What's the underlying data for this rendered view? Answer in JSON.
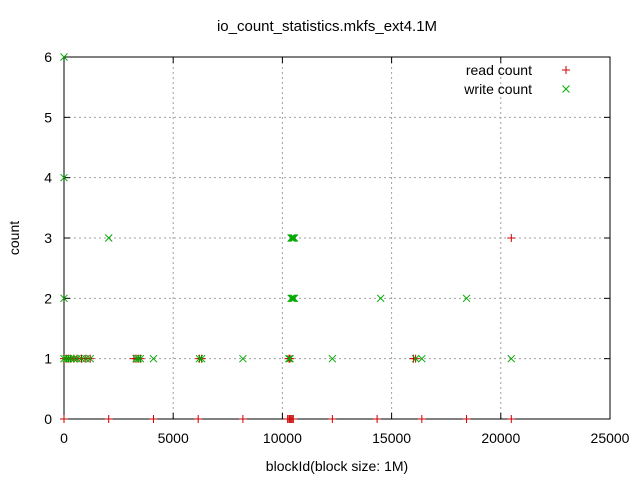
{
  "chart_data": {
    "type": "scatter",
    "title": "io_count_statistics.mkfs_ext4.1M",
    "xlabel": "blockId(block size: 1M)",
    "ylabel": "count",
    "xlim": [
      0,
      25000
    ],
    "ylim": [
      0,
      6
    ],
    "x_ticks": [
      "0",
      "5000",
      "10000",
      "15000",
      "20000",
      "25000"
    ],
    "y_ticks": [
      "0",
      "1",
      "2",
      "3",
      "4",
      "5",
      "6"
    ],
    "grid": true,
    "legend_position": "top-right",
    "colors": {
      "read": "#cc0000",
      "write": "#00aa00"
    },
    "series": [
      {
        "name": "read count",
        "marker": "plus",
        "points": [
          [
            0,
            0
          ],
          [
            2048,
            0
          ],
          [
            4096,
            0
          ],
          [
            6144,
            0
          ],
          [
            8192,
            0
          ],
          [
            10240,
            0
          ],
          [
            10300,
            0
          ],
          [
            10350,
            0
          ],
          [
            10400,
            0
          ],
          [
            10450,
            0
          ],
          [
            10500,
            0
          ],
          [
            12288,
            0
          ],
          [
            14336,
            0
          ],
          [
            16384,
            0
          ],
          [
            18432,
            0
          ],
          [
            20480,
            0
          ],
          [
            0,
            1
          ],
          [
            100,
            1
          ],
          [
            200,
            1
          ],
          [
            300,
            1
          ],
          [
            450,
            1
          ],
          [
            600,
            1
          ],
          [
            800,
            1
          ],
          [
            1000,
            1
          ],
          [
            1200,
            1
          ],
          [
            3200,
            1
          ],
          [
            3300,
            1
          ],
          [
            3400,
            1
          ],
          [
            3500,
            1
          ],
          [
            6200,
            1
          ],
          [
            6300,
            1
          ],
          [
            10300,
            1
          ],
          [
            10350,
            1
          ],
          [
            16000,
            1
          ],
          [
            16100,
            1
          ],
          [
            20480,
            3
          ]
        ]
      },
      {
        "name": "write count",
        "marker": "cross",
        "points": [
          [
            0,
            6
          ],
          [
            0,
            4
          ],
          [
            0,
            2
          ],
          [
            0,
            1
          ],
          [
            100,
            1
          ],
          [
            200,
            1
          ],
          [
            300,
            1
          ],
          [
            450,
            1
          ],
          [
            600,
            1
          ],
          [
            800,
            1
          ],
          [
            1000,
            1
          ],
          [
            1200,
            1
          ],
          [
            3300,
            1
          ],
          [
            3400,
            1
          ],
          [
            3500,
            1
          ],
          [
            4096,
            1
          ],
          [
            6200,
            1
          ],
          [
            6300,
            1
          ],
          [
            8192,
            1
          ],
          [
            10300,
            1
          ],
          [
            10350,
            1
          ],
          [
            12288,
            1
          ],
          [
            16100,
            1
          ],
          [
            16384,
            1
          ],
          [
            20480,
            1
          ],
          [
            2048,
            3
          ],
          [
            10400,
            3
          ],
          [
            10450,
            3
          ],
          [
            10500,
            3
          ],
          [
            10550,
            3
          ],
          [
            10400,
            2
          ],
          [
            10450,
            2
          ],
          [
            10500,
            2
          ],
          [
            10550,
            2
          ],
          [
            14500,
            2
          ],
          [
            18432,
            2
          ]
        ]
      }
    ]
  }
}
